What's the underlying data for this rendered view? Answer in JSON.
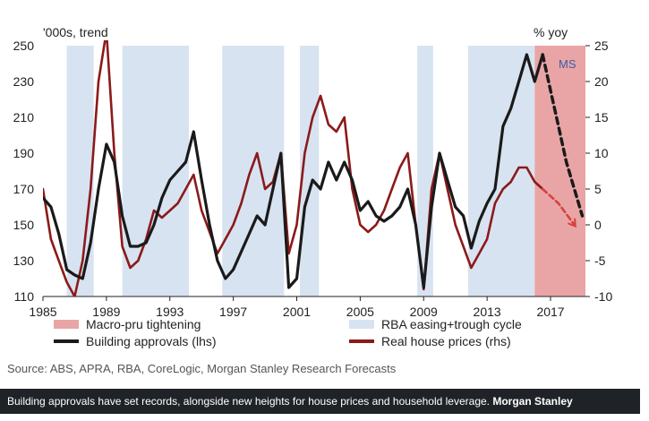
{
  "chart_data": {
    "type": "line",
    "left_axis_title": "'000s, trend",
    "right_axis_title": "% yoy",
    "x_ticks": [
      "1985",
      "1989",
      "1993",
      "1997",
      "2001",
      "2005",
      "2009",
      "2013",
      "2017"
    ],
    "x_range": [
      1985,
      2019.2
    ],
    "y_left_range": [
      110,
      250
    ],
    "y_left_ticks": [
      "250",
      "230",
      "210",
      "190",
      "170",
      "150",
      "130",
      "110"
    ],
    "y_right_range": [
      -10,
      25
    ],
    "y_right_ticks": [
      "25",
      "20",
      "15",
      "10",
      "5",
      "0",
      "-5",
      "-10"
    ],
    "grid": false,
    "shaded_regions": [
      {
        "type": "easing",
        "start": 1986.5,
        "end": 1988.2
      },
      {
        "type": "easing",
        "start": 1990.0,
        "end": 1994.2
      },
      {
        "type": "easing",
        "start": 1996.3,
        "end": 2000.2
      },
      {
        "type": "easing",
        "start": 2001.2,
        "end": 2002.4
      },
      {
        "type": "easing",
        "start": 2008.6,
        "end": 2009.6
      },
      {
        "type": "easing",
        "start": 2011.8,
        "end": 2016.0
      },
      {
        "type": "macropru",
        "start": 2016.0,
        "end": 2019.2
      }
    ],
    "series": [
      {
        "name": "Building approvals (lhs)",
        "axis": "left",
        "color": "#1a1a1a",
        "x": [
          1985.0,
          1985.5,
          1986.0,
          1986.5,
          1987.0,
          1987.5,
          1988.0,
          1988.5,
          1989.0,
          1989.5,
          1990.0,
          1990.5,
          1991.0,
          1991.5,
          1992.0,
          1992.5,
          1993.0,
          1993.5,
          1994.0,
          1994.5,
          1995.0,
          1995.5,
          1996.0,
          1996.5,
          1997.0,
          1997.5,
          1998.0,
          1998.5,
          1999.0,
          1999.5,
          2000.0,
          2000.5,
          2001.0,
          2001.5,
          2002.0,
          2002.5,
          2003.0,
          2003.5,
          2004.0,
          2004.5,
          2005.0,
          2005.5,
          2006.0,
          2006.5,
          2007.0,
          2007.5,
          2008.0,
          2008.5,
          2009.0,
          2009.5,
          2010.0,
          2010.5,
          2011.0,
          2011.5,
          2012.0,
          2012.5,
          2013.0,
          2013.5,
          2014.0,
          2014.5,
          2015.0,
          2015.5,
          2016.0,
          2016.5
        ],
        "values": [
          165,
          160,
          145,
          125,
          122,
          120,
          140,
          170,
          195,
          185,
          155,
          138,
          138,
          140,
          150,
          165,
          175,
          180,
          185,
          202,
          175,
          150,
          130,
          120,
          125,
          135,
          145,
          155,
          150,
          170,
          190,
          115,
          120,
          160,
          175,
          170,
          185,
          175,
          185,
          175,
          158,
          163,
          155,
          152,
          155,
          160,
          170,
          150,
          115,
          160,
          190,
          175,
          160,
          155,
          137,
          152,
          162,
          170,
          205,
          215,
          230,
          245,
          230,
          245
        ]
      },
      {
        "name": "Building approvals forecast",
        "axis": "left",
        "color": "#1a1a1a",
        "dashed": true,
        "x": [
          2016.5,
          2017.0,
          2017.5,
          2018.0,
          2018.5,
          2019.0
        ],
        "values": [
          245,
          225,
          205,
          185,
          170,
          155
        ]
      },
      {
        "name": "Real house prices (rhs)",
        "axis": "right",
        "color": "#8b1a1a",
        "x": [
          1985.0,
          1985.5,
          1986.0,
          1986.5,
          1987.0,
          1987.5,
          1988.0,
          1988.5,
          1989.0,
          1989.5,
          1990.0,
          1990.5,
          1991.0,
          1991.5,
          1992.0,
          1992.5,
          1993.0,
          1993.5,
          1994.0,
          1994.5,
          1995.0,
          1995.5,
          1996.0,
          1996.5,
          1997.0,
          1997.5,
          1998.0,
          1998.5,
          1999.0,
          1999.5,
          2000.0,
          2000.5,
          2001.0,
          2001.5,
          2002.0,
          2002.5,
          2003.0,
          2003.5,
          2004.0,
          2004.5,
          2005.0,
          2005.5,
          2006.0,
          2006.5,
          2007.0,
          2007.5,
          2008.0,
          2008.5,
          2009.0,
          2009.5,
          2010.0,
          2010.5,
          2011.0,
          2011.5,
          2012.0,
          2012.5,
          2013.0,
          2013.5,
          2014.0,
          2014.5,
          2015.0,
          2015.5,
          2016.0,
          2016.5
        ],
        "values": [
          5,
          -2,
          -5,
          -8,
          -10,
          -5,
          5,
          20,
          27,
          10,
          -3,
          -6,
          -5,
          -2,
          2,
          1,
          2,
          3,
          5,
          7,
          2,
          -1,
          -4,
          -2,
          0,
          3,
          7,
          10,
          5,
          6,
          10,
          -4,
          0,
          10,
          15,
          18,
          14,
          13,
          15,
          5,
          0,
          -1,
          0,
          2,
          5,
          8,
          10,
          0,
          -9,
          5,
          10,
          5,
          0,
          -3,
          -6,
          -4,
          -2,
          3,
          5,
          6,
          8,
          8,
          6,
          5
        ]
      },
      {
        "name": "Real house prices forecast",
        "axis": "right",
        "color": "#d94040",
        "dashed": true,
        "arrow": true,
        "x": [
          2016.5,
          2017.5,
          2018.5
        ],
        "values": [
          5,
          3,
          0
        ]
      }
    ],
    "legend": {
      "placement": "bottom",
      "items": [
        {
          "label": "Macro-pru tightening",
          "kind": "box",
          "color": "#e9a5a5"
        },
        {
          "label": "RBA easing+trough cycle",
          "kind": "box",
          "color": "#d8e3f1"
        },
        {
          "label": "Building approvals (lhs)",
          "kind": "line",
          "color": "#1a1a1a"
        },
        {
          "label": "Real house prices (rhs)",
          "kind": "line",
          "color": "#8b1a1a"
        }
      ]
    },
    "annotations": [
      {
        "text": "MS",
        "color": "#3b5ba8"
      }
    ],
    "colors": {
      "easing": "#d8e3f1",
      "macropru": "#e9a5a5"
    }
  },
  "source": "Source: ABS, APRA, RBA, CoreLogic, Morgan Stanley Research Forecasts",
  "caption": {
    "text": "Building approvals have set records, alongside new heights for house prices and household leverage. ",
    "credit": "Morgan Stanley"
  }
}
